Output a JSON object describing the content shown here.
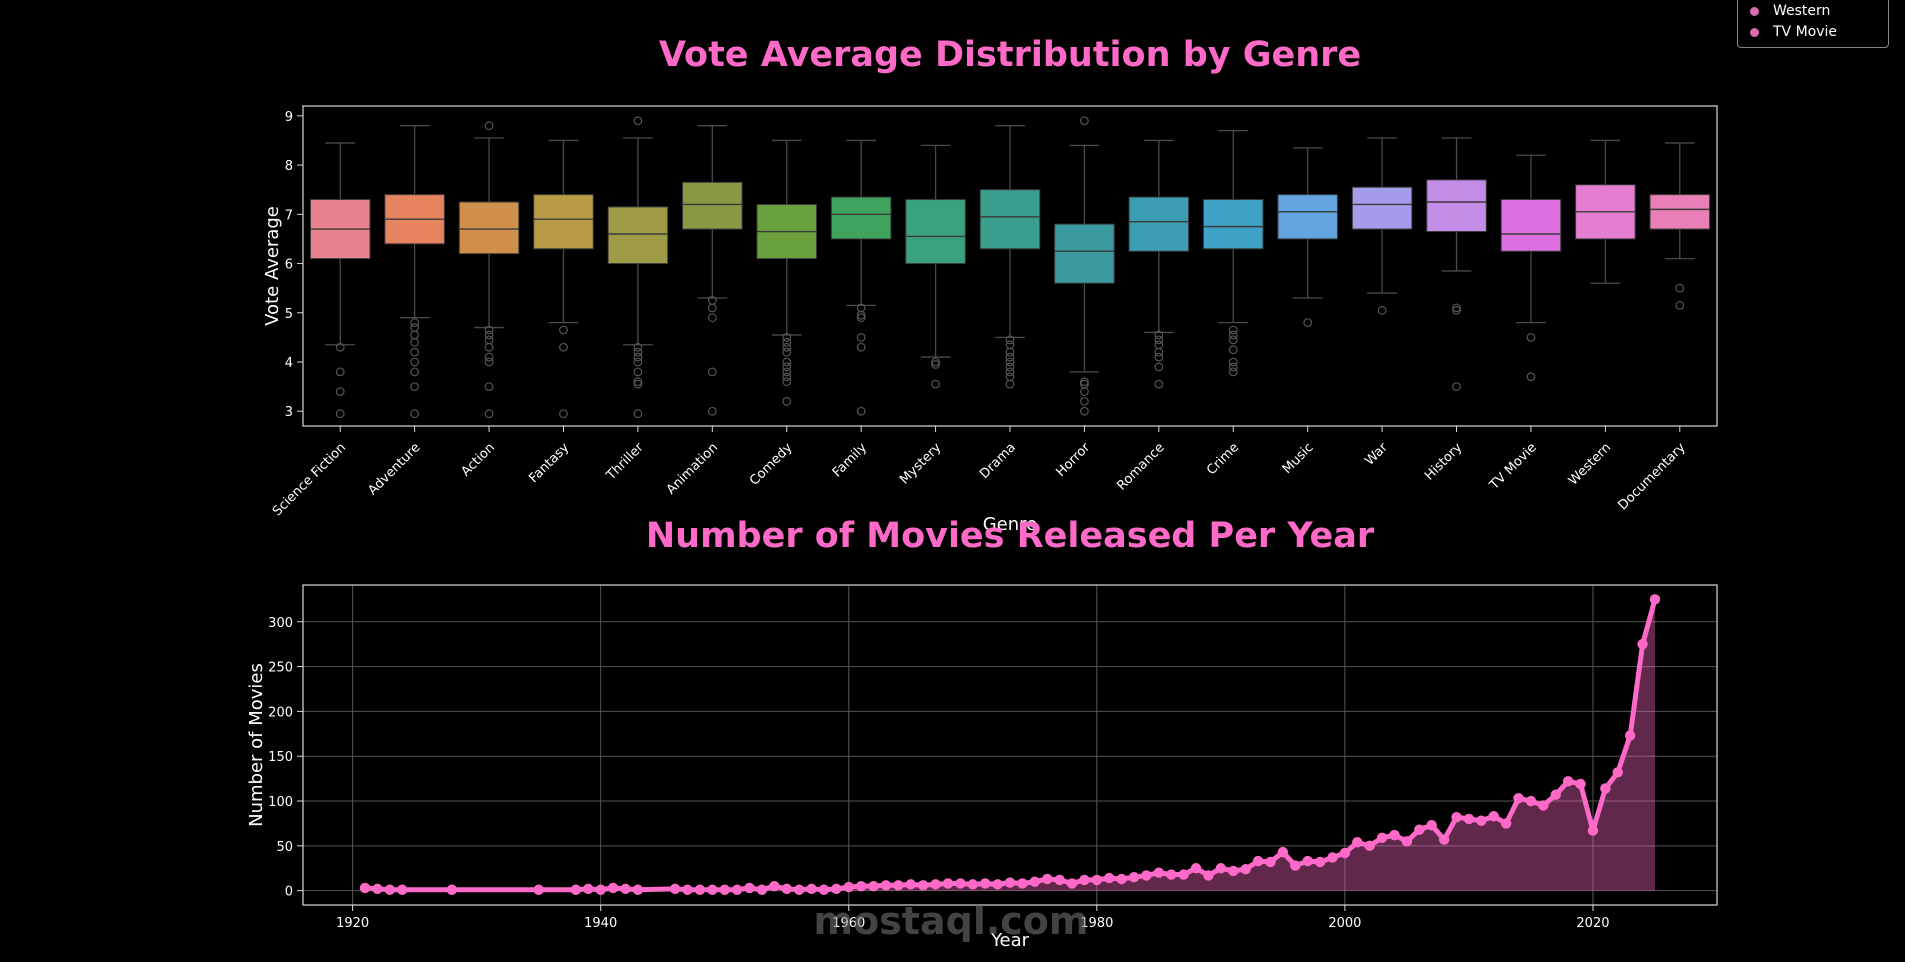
{
  "colors": {
    "accent": "#ff69c8",
    "background": "#000000",
    "axis": "#d9d9d9",
    "grid": "#555555"
  },
  "legend": {
    "items": [
      {
        "label": "Western",
        "color": "#d96bb0"
      },
      {
        "label": "TV Movie",
        "color": "#d96bb0"
      }
    ]
  },
  "watermark": "mostaql.com",
  "chart_data": [
    {
      "type": "box",
      "title": "Vote Average Distribution by Genre",
      "xlabel": "Genre",
      "ylabel": "Vote Average",
      "ylim": [
        2.7,
        9.2
      ],
      "yticks": [
        3,
        4,
        5,
        6,
        7,
        8,
        9
      ],
      "grid": false,
      "categories": [
        "Science Fiction",
        "Adventure",
        "Action",
        "Fantasy",
        "Thriller",
        "Animation",
        "Comedy",
        "Family",
        "Mystery",
        "Drama",
        "Horror",
        "Romance",
        "Crime",
        "Music",
        "War",
        "History",
        "TV Movie",
        "Western",
        "Documentary"
      ],
      "colors": [
        "#e8828f",
        "#e5845f",
        "#d08f4a",
        "#b99a46",
        "#9e9a45",
        "#869a44",
        "#6aa13e",
        "#3ea35d",
        "#3aa27c",
        "#3a9e8e",
        "#3a9a9e",
        "#3c9cb3",
        "#3ea2c6",
        "#62a5e0",
        "#a39ceb",
        "#c38de8",
        "#de6fe0",
        "#e37ed2",
        "#e87fb6"
      ],
      "stats": [
        {
          "q1": 6.1,
          "median": 6.7,
          "q3": 7.3,
          "whislo": 4.35,
          "whishi": 8.45,
          "fliers": [
            4.3,
            3.8,
            3.4,
            2.95
          ]
        },
        {
          "q1": 6.4,
          "median": 6.9,
          "q3": 7.4,
          "whislo": 4.9,
          "whishi": 8.8,
          "fliers": [
            4.8,
            4.7,
            4.55,
            4.4,
            4.2,
            4.0,
            3.8,
            3.5,
            2.95
          ]
        },
        {
          "q1": 6.2,
          "median": 6.7,
          "q3": 7.25,
          "whislo": 4.7,
          "whishi": 8.55,
          "fliers": [
            8.8,
            4.65,
            4.55,
            4.45,
            4.3,
            4.1,
            4.0,
            3.5,
            2.95
          ]
        },
        {
          "q1": 6.3,
          "median": 6.9,
          "q3": 7.4,
          "whislo": 4.8,
          "whishi": 8.5,
          "fliers": [
            4.65,
            4.3,
            2.95
          ]
        },
        {
          "q1": 6.0,
          "median": 6.6,
          "q3": 7.15,
          "whislo": 4.35,
          "whishi": 8.55,
          "fliers": [
            8.9,
            4.3,
            4.2,
            4.1,
            4.0,
            3.8,
            3.6,
            3.55,
            2.95
          ]
        },
        {
          "q1": 6.7,
          "median": 7.2,
          "q3": 7.65,
          "whislo": 5.3,
          "whishi": 8.8,
          "fliers": [
            5.25,
            5.1,
            4.9,
            3.8,
            3.0
          ]
        },
        {
          "q1": 6.1,
          "median": 6.65,
          "q3": 7.2,
          "whislo": 4.55,
          "whishi": 8.5,
          "fliers": [
            4.5,
            4.4,
            4.3,
            4.2,
            4.0,
            3.9,
            3.8,
            3.7,
            3.6,
            3.2
          ]
        },
        {
          "q1": 6.5,
          "median": 7.0,
          "q3": 7.35,
          "whislo": 5.15,
          "whishi": 8.5,
          "fliers": [
            5.1,
            4.95,
            4.9,
            4.5,
            4.3,
            3.0
          ]
        },
        {
          "q1": 6.0,
          "median": 6.55,
          "q3": 7.3,
          "whislo": 4.1,
          "whishi": 8.4,
          "fliers": [
            4.0,
            3.95,
            3.55
          ]
        },
        {
          "q1": 6.3,
          "median": 6.95,
          "q3": 7.5,
          "whislo": 4.5,
          "whishi": 8.8,
          "fliers": [
            4.45,
            4.35,
            4.2,
            4.1,
            4.0,
            3.9,
            3.8,
            3.7,
            3.55
          ]
        },
        {
          "q1": 5.6,
          "median": 6.25,
          "q3": 6.8,
          "whislo": 3.8,
          "whishi": 8.4,
          "fliers": [
            8.9,
            3.6,
            3.55,
            3.4,
            3.2,
            3.0
          ]
        },
        {
          "q1": 6.25,
          "median": 6.85,
          "q3": 7.35,
          "whislo": 4.6,
          "whishi": 8.5,
          "fliers": [
            4.55,
            4.45,
            4.35,
            4.2,
            4.1,
            3.9,
            3.55
          ]
        },
        {
          "q1": 6.3,
          "median": 6.75,
          "q3": 7.3,
          "whislo": 4.8,
          "whishi": 8.7,
          "fliers": [
            4.65,
            4.55,
            4.45,
            4.25,
            4.0,
            3.9,
            3.8
          ]
        },
        {
          "q1": 6.5,
          "median": 7.05,
          "q3": 7.4,
          "whislo": 5.3,
          "whishi": 8.35,
          "fliers": [
            4.8
          ]
        },
        {
          "q1": 6.7,
          "median": 7.2,
          "q3": 7.55,
          "whislo": 5.4,
          "whishi": 8.55,
          "fliers": [
            5.05
          ]
        },
        {
          "q1": 6.65,
          "median": 7.25,
          "q3": 7.7,
          "whislo": 5.85,
          "whishi": 8.55,
          "fliers": [
            5.1,
            5.05,
            3.5
          ]
        },
        {
          "q1": 6.25,
          "median": 6.6,
          "q3": 7.3,
          "whislo": 4.8,
          "whishi": 8.2,
          "fliers": [
            4.5,
            3.7
          ]
        },
        {
          "q1": 6.5,
          "median": 7.05,
          "q3": 7.6,
          "whislo": 5.6,
          "whishi": 8.5,
          "fliers": []
        },
        {
          "q1": 6.7,
          "median": 7.1,
          "q3": 7.4,
          "whislo": 6.1,
          "whishi": 8.45,
          "fliers": [
            5.5,
            5.15
          ]
        }
      ]
    },
    {
      "type": "area",
      "title": "Number of Movies Released Per Year",
      "xlabel": "Year",
      "ylabel": "Number of Movies",
      "xlim": [
        1916,
        2030
      ],
      "ylim": [
        -16,
        341
      ],
      "xticks": [
        1920,
        1940,
        1960,
        1980,
        2000,
        2020
      ],
      "yticks": [
        0,
        50,
        100,
        150,
        200,
        250,
        300
      ],
      "grid": true,
      "x": [
        1921,
        1922,
        1923,
        1924,
        1928,
        1935,
        1938,
        1939,
        1940,
        1941,
        1942,
        1943,
        1946,
        1947,
        1948,
        1949,
        1950,
        1951,
        1952,
        1953,
        1954,
        1955,
        1956,
        1957,
        1958,
        1959,
        1960,
        1961,
        1962,
        1963,
        1964,
        1965,
        1966,
        1967,
        1968,
        1969,
        1970,
        1971,
        1972,
        1973,
        1974,
        1975,
        1976,
        1977,
        1978,
        1979,
        1980,
        1981,
        1982,
        1983,
        1984,
        1985,
        1986,
        1987,
        1988,
        1989,
        1990,
        1991,
        1992,
        1993,
        1994,
        1995,
        1996,
        1997,
        1998,
        1999,
        2000,
        2001,
        2002,
        2003,
        2004,
        2005,
        2006,
        2007,
        2008,
        2009,
        2010,
        2011,
        2012,
        2013,
        2014,
        2015,
        2016,
        2017,
        2018,
        2019,
        2020,
        2021,
        2022,
        2023,
        2024,
        2025
      ],
      "y": [
        3,
        2,
        1,
        1,
        1,
        1,
        1,
        2,
        1,
        3,
        2,
        1,
        2,
        1,
        1,
        1,
        1,
        1,
        3,
        1,
        5,
        2,
        1,
        2,
        1,
        2,
        4,
        5,
        5,
        6,
        6,
        7,
        6,
        7,
        8,
        8,
        7,
        8,
        7,
        9,
        8,
        10,
        13,
        12,
        8,
        12,
        12,
        14,
        13,
        15,
        17,
        20,
        18,
        18,
        25,
        17,
        25,
        22,
        24,
        33,
        32,
        43,
        28,
        33,
        32,
        37,
        42,
        54,
        50,
        59,
        62,
        55,
        68,
        73,
        57,
        82,
        80,
        78,
        83,
        75,
        103,
        100,
        95,
        107,
        122,
        119,
        67,
        114,
        132,
        173,
        275,
        325
      ]
    }
  ]
}
